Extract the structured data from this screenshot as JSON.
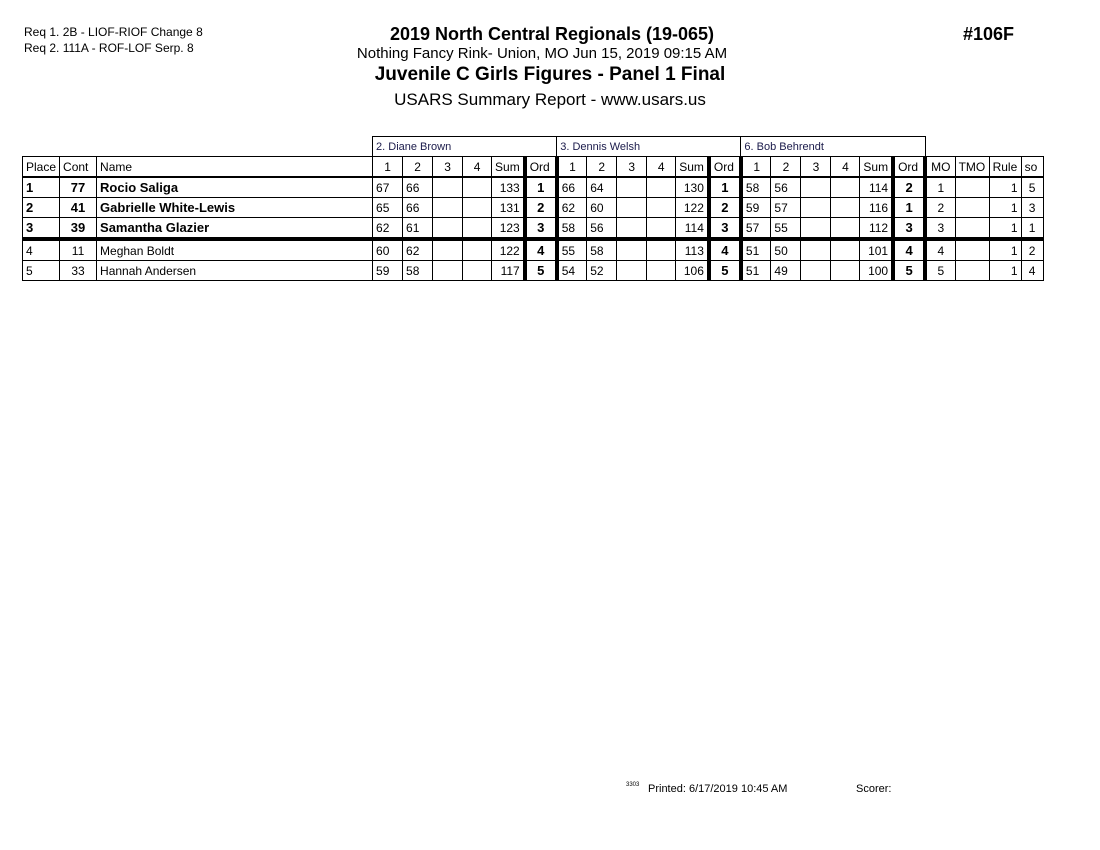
{
  "requirements": [
    "Req  1.  2B - LIOF-RIOF Change 8",
    "Req  2.  111A - ROF-LOF Serp. 8"
  ],
  "event_title": "2019 North Central Regionals (19-065)",
  "venue_line": "Nothing Fancy Rink- Union, MO  Jun 15, 2019  09:15 AM",
  "event_name": "Juvenile C Girls Figures - Panel 1 Final",
  "report_line": "USARS Summary Report - www.usars.us",
  "event_number": "#106F",
  "judges": [
    "2.  Diane Brown",
    "3.  Dennis Welsh",
    "6.  Bob Behrendt"
  ],
  "headers": {
    "place": "Place",
    "cont": "Cont",
    "name": "Name",
    "marks": [
      "1",
      "2",
      "3",
      "4"
    ],
    "sum": "Sum",
    "ord": "Ord",
    "mo": "MO",
    "tmo": "TMO",
    "rule": "Rule",
    "so": "so"
  },
  "rows": [
    {
      "place": "1",
      "cont": "77",
      "name": "Rocio Saliga",
      "scores": [
        [
          "67",
          "66",
          "",
          "",
          "133",
          "1"
        ],
        [
          "66",
          "64",
          "",
          "",
          "130",
          "1"
        ],
        [
          "58",
          "56",
          "",
          "",
          "114",
          "2"
        ]
      ],
      "mo": "1",
      "tmo": "",
      "rule": "1",
      "so": "5",
      "bold": true
    },
    {
      "place": "2",
      "cont": "41",
      "name": "Gabrielle White-Lewis",
      "scores": [
        [
          "65",
          "66",
          "",
          "",
          "131",
          "2"
        ],
        [
          "62",
          "60",
          "",
          "",
          "122",
          "2"
        ],
        [
          "59",
          "57",
          "",
          "",
          "116",
          "1"
        ]
      ],
      "mo": "2",
      "tmo": "",
      "rule": "1",
      "so": "3",
      "bold": true
    },
    {
      "place": "3",
      "cont": "39",
      "name": "Samantha Glazier",
      "scores": [
        [
          "62",
          "61",
          "",
          "",
          "123",
          "3"
        ],
        [
          "58",
          "56",
          "",
          "",
          "114",
          "3"
        ],
        [
          "57",
          "55",
          "",
          "",
          "112",
          "3"
        ]
      ],
      "mo": "3",
      "tmo": "",
      "rule": "1",
      "so": "1",
      "bold": true
    },
    {
      "place": "4",
      "cont": "11",
      "name": "Meghan Boldt",
      "scores": [
        [
          "60",
          "62",
          "",
          "",
          "122",
          "4"
        ],
        [
          "55",
          "58",
          "",
          "",
          "113",
          "4"
        ],
        [
          "51",
          "50",
          "",
          "",
          "101",
          "4"
        ]
      ],
      "mo": "4",
      "tmo": "",
      "rule": "1",
      "so": "2",
      "bold": false
    },
    {
      "place": "5",
      "cont": "33",
      "name": "Hannah Andersen",
      "scores": [
        [
          "59",
          "58",
          "",
          "",
          "117",
          "5"
        ],
        [
          "54",
          "52",
          "",
          "",
          "106",
          "5"
        ],
        [
          "51",
          "49",
          "",
          "",
          "100",
          "5"
        ]
      ],
      "mo": "5",
      "tmo": "",
      "rule": "1",
      "so": "4",
      "bold": false
    }
  ],
  "footer": {
    "code": "3303",
    "printed": "Printed:  6/17/2019  10:45 AM",
    "scorer": "Scorer:"
  }
}
